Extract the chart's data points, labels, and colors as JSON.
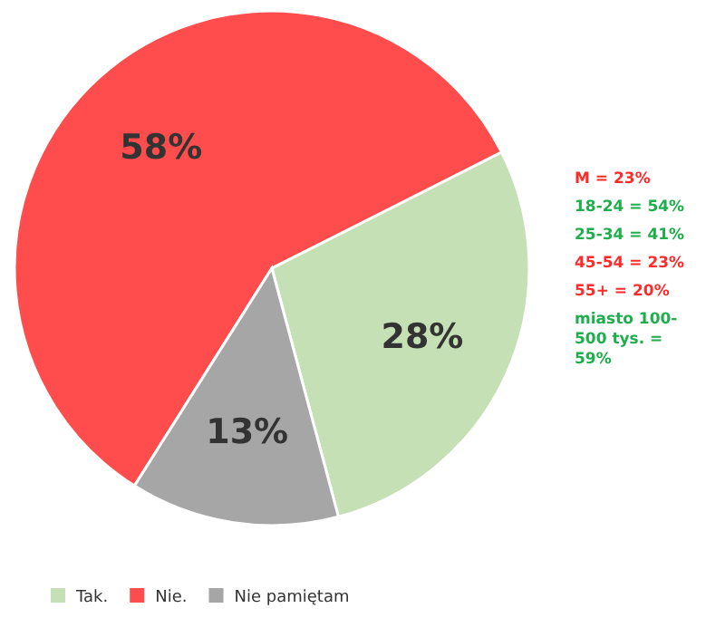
{
  "chart_data": {
    "type": "pie",
    "categories": [
      "Tak.",
      "Nie.",
      "Nie pamiętam"
    ],
    "values": [
      28,
      58,
      13
    ],
    "colors": [
      "#c5e0b4",
      "#ff4d4d",
      "#a6a6a6"
    ],
    "value_labels": [
      "28%",
      "58%",
      "13%"
    ],
    "legend": "bottom left",
    "annotations": [
      "M = 23%",
      "18-24 = 54%",
      "25-34 = 41%",
      "45-54 = 23%",
      "55+ = 20%",
      "miasto 100-500 tys. = 59%"
    ]
  }
}
